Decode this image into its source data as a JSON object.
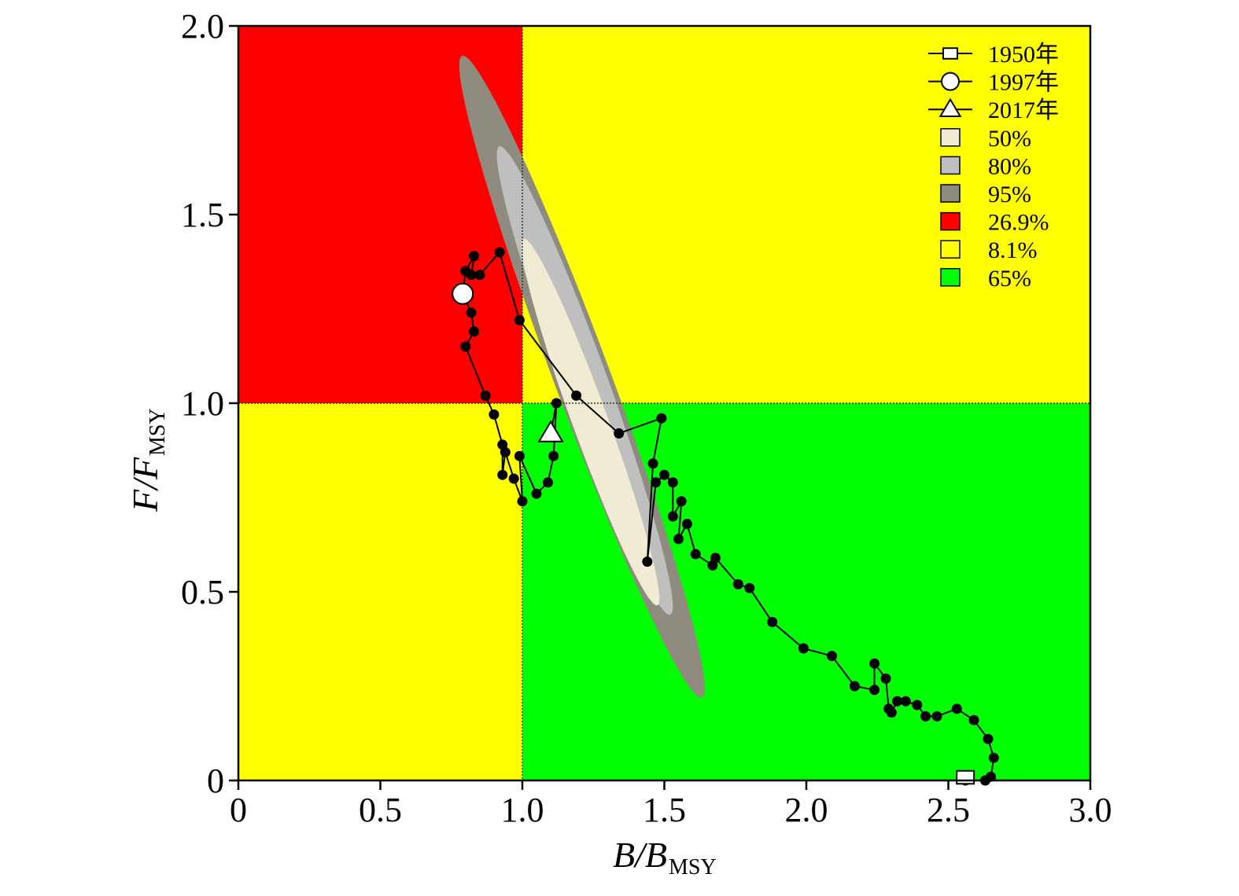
{
  "chart_data": {
    "type": "scatter",
    "xlabel": {
      "main": "B/B",
      "sub": "MSY"
    },
    "ylabel": {
      "main": "F/F",
      "sub": "MSY"
    },
    "xlim": [
      0,
      3
    ],
    "ylim": [
      0,
      2
    ],
    "x_ticks": [
      {
        "value": 0,
        "label": "0"
      },
      {
        "value": 0.5,
        "label": "0.5"
      },
      {
        "value": 1.0,
        "label": "1.0"
      },
      {
        "value": 1.5,
        "label": "1.5"
      },
      {
        "value": 2.0,
        "label": "2.0"
      },
      {
        "value": 2.5,
        "label": "2.5"
      },
      {
        "value": 3.0,
        "label": "3.0"
      }
    ],
    "y_ticks": [
      {
        "value": 0,
        "label": "0"
      },
      {
        "value": 0.5,
        "label": "0.5"
      },
      {
        "value": 1.0,
        "label": "1.0"
      },
      {
        "value": 1.5,
        "label": "1.5"
      },
      {
        "value": 2.0,
        "label": "2.0"
      }
    ],
    "quadrants": [
      {
        "name": "overfished-overfishing",
        "x": [
          0,
          1
        ],
        "y": [
          1,
          2
        ],
        "color": "#ff0000"
      },
      {
        "name": "healthy-overfishing",
        "x": [
          1,
          3
        ],
        "y": [
          1,
          2
        ],
        "color": "#ffff00"
      },
      {
        "name": "overfished-no-overfishing",
        "x": [
          0,
          1
        ],
        "y": [
          0,
          1
        ],
        "color": "#ffff00"
      },
      {
        "name": "healthy",
        "x": [
          1,
          3
        ],
        "y": [
          0,
          1
        ],
        "color": "#00ff00"
      }
    ],
    "reference_lines": {
      "x": 1.0,
      "y": 1.0
    },
    "confidence_regions": [
      {
        "level": "95%",
        "center": [
          1.21,
          1.07
        ],
        "semi_major": 0.95,
        "semi_minor": 0.095,
        "angle_deg": -63.5,
        "color": "#8f8b7e"
      },
      {
        "level": "80%",
        "center": [
          1.22,
          1.06
        ],
        "semi_major": 0.69,
        "semi_minor": 0.075,
        "angle_deg": -64,
        "color": "#bfbfbf"
      },
      {
        "level": "50%",
        "center": [
          1.24,
          0.95
        ],
        "semi_major": 0.54,
        "semi_minor": 0.06,
        "angle_deg": -64,
        "color": "#f0ebd2"
      }
    ],
    "series": [
      {
        "name": "trajectory",
        "color": "#000000",
        "points": [
          [
            2.56,
            0.0
          ],
          [
            2.63,
            0.0
          ],
          [
            2.65,
            0.01
          ],
          [
            2.66,
            0.06
          ],
          [
            2.64,
            0.11
          ],
          [
            2.59,
            0.16
          ],
          [
            2.53,
            0.19
          ],
          [
            2.46,
            0.17
          ],
          [
            2.42,
            0.17
          ],
          [
            2.39,
            0.2
          ],
          [
            2.35,
            0.21
          ],
          [
            2.32,
            0.21
          ],
          [
            2.3,
            0.18
          ],
          [
            2.29,
            0.19
          ],
          [
            2.28,
            0.27
          ],
          [
            2.24,
            0.31
          ],
          [
            2.24,
            0.24
          ],
          [
            2.17,
            0.25
          ],
          [
            2.09,
            0.33
          ],
          [
            1.99,
            0.35
          ],
          [
            1.88,
            0.42
          ],
          [
            1.8,
            0.51
          ],
          [
            1.76,
            0.52
          ],
          [
            1.68,
            0.59
          ],
          [
            1.67,
            0.57
          ],
          [
            1.61,
            0.6
          ],
          [
            1.58,
            0.68
          ],
          [
            1.55,
            0.64
          ],
          [
            1.56,
            0.74
          ],
          [
            1.53,
            0.7
          ],
          [
            1.53,
            0.79
          ],
          [
            1.5,
            0.81
          ],
          [
            1.47,
            0.79
          ],
          [
            1.44,
            0.58
          ],
          [
            1.46,
            0.84
          ],
          [
            1.49,
            0.96
          ],
          [
            1.34,
            0.92
          ],
          [
            1.19,
            1.02
          ],
          [
            0.99,
            1.22
          ],
          [
            0.92,
            1.4
          ],
          [
            0.85,
            1.34
          ],
          [
            0.82,
            1.34
          ],
          [
            0.83,
            1.39
          ],
          [
            0.8,
            1.35
          ],
          [
            0.79,
            1.29
          ],
          [
            0.82,
            1.24
          ],
          [
            0.83,
            1.19
          ],
          [
            0.8,
            1.15
          ],
          [
            0.87,
            1.02
          ],
          [
            0.9,
            0.97
          ],
          [
            0.93,
            0.89
          ],
          [
            0.93,
            0.81
          ],
          [
            0.94,
            0.87
          ],
          [
            0.97,
            0.8
          ],
          [
            1.0,
            0.74
          ],
          [
            0.99,
            0.86
          ],
          [
            1.05,
            0.76
          ],
          [
            1.09,
            0.79
          ],
          [
            1.11,
            0.86
          ],
          [
            1.12,
            1.0
          ],
          [
            1.1,
            0.92
          ]
        ]
      }
    ],
    "highlighted_points": [
      {
        "label": "1950年",
        "x": 2.56,
        "y": 0.0,
        "marker": "square"
      },
      {
        "label": "1997年",
        "x": 0.79,
        "y": 1.29,
        "marker": "circle"
      },
      {
        "label": "2017年",
        "x": 1.1,
        "y": 0.92,
        "marker": "triangle"
      }
    ],
    "legend": {
      "position": "top-right",
      "entries": [
        {
          "label": "1950年",
          "kind": "line-square",
          "color": "#ffffff"
        },
        {
          "label": "1997年",
          "kind": "line-circle",
          "color": "#ffffff"
        },
        {
          "label": "2017年",
          "kind": "line-triangle",
          "color": "#ffffff"
        },
        {
          "label": "50%",
          "kind": "box",
          "color": "#f0ebd2"
        },
        {
          "label": "80%",
          "kind": "box",
          "color": "#bfbfbf"
        },
        {
          "label": "95%",
          "kind": "box",
          "color": "#8f8b7e"
        },
        {
          "label": "26.9%",
          "kind": "box",
          "color": "#ff0000"
        },
        {
          "label": "8.1%",
          "kind": "box",
          "color": "#ffff00"
        },
        {
          "label": "65%",
          "kind": "box",
          "color": "#00ff00"
        }
      ]
    }
  }
}
